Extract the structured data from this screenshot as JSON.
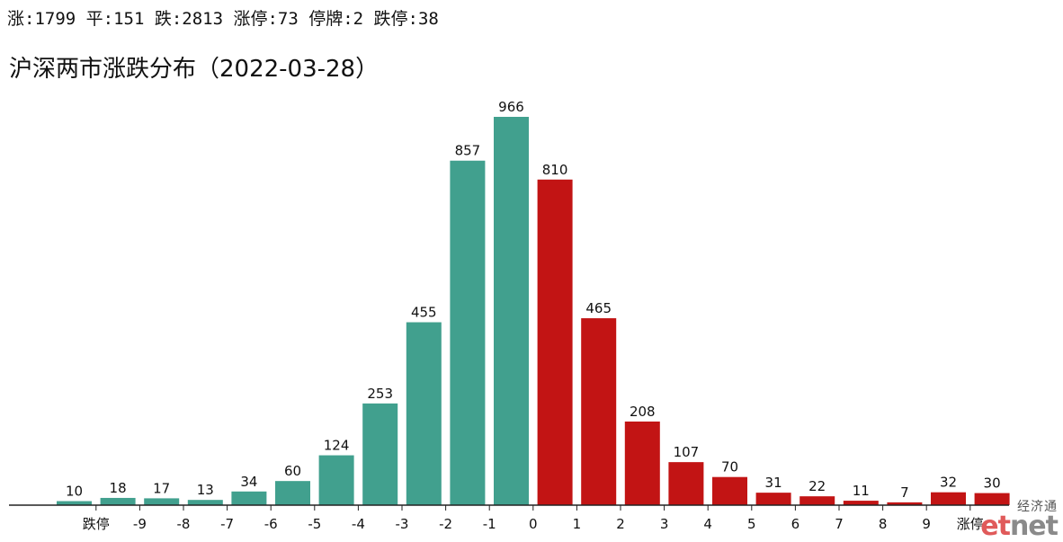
{
  "summary": "涨:1799 平:151 跌:2813 涨停:73 停牌:2 跌停:38",
  "colors": {
    "down": "#41a08e",
    "up": "#c21414",
    "axis": "#222222"
  },
  "logo": {
    "cn": "经济通",
    "en_a": "et",
    "en_b": "net"
  },
  "chart_data": {
    "type": "bar",
    "title": "沪深两市涨跌分布（2022-03-28）",
    "xlabel": "",
    "ylabel": "",
    "ylim": [
      0,
      966
    ],
    "grid": false,
    "x_tick_labels": [
      "跌停",
      "-9",
      "-8",
      "-7",
      "-6",
      "-5",
      "-4",
      "-3",
      "-2",
      "-1",
      "0",
      "1",
      "2",
      "3",
      "4",
      "5",
      "6",
      "7",
      "8",
      "9",
      "涨停"
    ],
    "values": [
      10,
      18,
      17,
      13,
      34,
      60,
      124,
      253,
      455,
      857,
      966,
      810,
      465,
      208,
      107,
      70,
      31,
      22,
      11,
      7,
      32,
      30
    ],
    "bar_colors": [
      "down",
      "down",
      "down",
      "down",
      "down",
      "down",
      "down",
      "down",
      "down",
      "down",
      "down",
      "up",
      "up",
      "up",
      "up",
      "up",
      "up",
      "up",
      "up",
      "up",
      "up",
      "up"
    ]
  }
}
